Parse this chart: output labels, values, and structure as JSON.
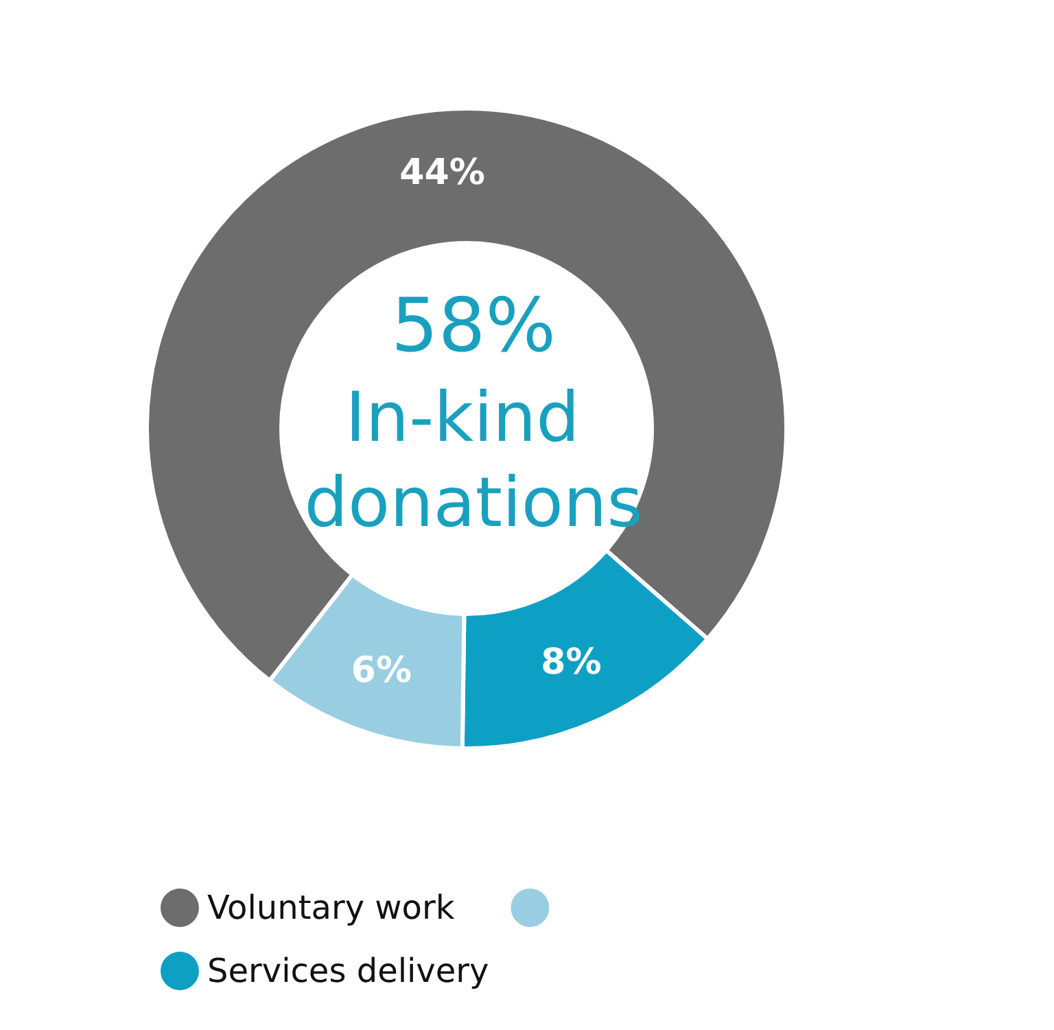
{
  "chart_data": {
    "type": "donut",
    "title": "58%",
    "subtitle": "In-kind donations",
    "categories": [
      "Voluntary work",
      "Services delivery",
      null
    ],
    "values": [
      44,
      8,
      6
    ],
    "colors": [
      "#6d6d6d",
      "#0ea0c4",
      "#99cde2"
    ],
    "value_labels": [
      "44%",
      "8%",
      "6%"
    ],
    "legend": "bottom left"
  }
}
